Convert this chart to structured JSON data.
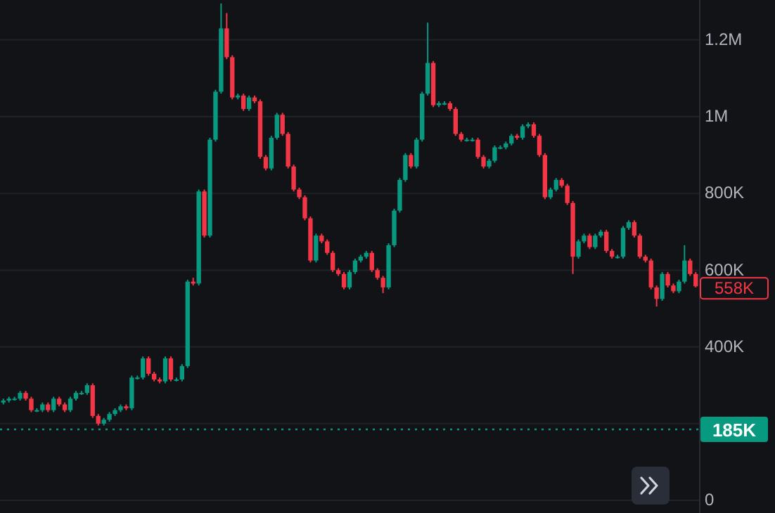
{
  "chart_data": {
    "type": "candlestick",
    "categories": [
      null,
      null,
      null,
      null,
      null,
      null,
      null,
      null,
      null,
      null,
      null,
      null,
      null,
      null,
      null,
      null,
      null,
      null,
      null,
      null,
      null,
      null,
      null,
      null,
      null,
      null,
      null,
      null,
      null,
      null,
      null,
      null,
      null,
      null,
      null,
      null,
      null,
      null,
      null,
      null,
      null,
      null,
      null,
      null,
      null,
      null,
      null,
      null,
      null,
      null,
      null,
      null,
      null,
      null,
      null,
      null,
      null,
      null,
      null,
      null,
      null,
      null,
      null,
      null,
      null,
      null,
      null,
      null,
      null,
      null,
      null,
      null,
      null,
      null,
      null,
      null,
      null,
      null,
      null,
      null,
      null,
      null,
      null,
      null,
      null,
      null,
      null,
      null,
      null,
      null,
      null,
      null,
      null,
      null,
      null,
      null,
      null,
      null,
      null,
      null,
      null,
      null,
      null,
      null,
      null,
      null,
      null,
      null,
      null,
      null,
      null,
      null,
      null,
      null,
      null,
      null,
      null,
      null,
      null,
      null,
      null,
      null,
      null,
      null,
      null
    ],
    "ohlc": [
      [
        255000,
        265000,
        250000,
        260000
      ],
      [
        260000,
        270000,
        255000,
        265000
      ],
      [
        265000,
        270000,
        260000,
        265000
      ],
      [
        265000,
        285000,
        260000,
        280000
      ],
      [
        280000,
        285000,
        260000,
        265000
      ],
      [
        265000,
        270000,
        230000,
        235000
      ],
      [
        235000,
        240000,
        230000,
        235000
      ],
      [
        235000,
        255000,
        230000,
        250000
      ],
      [
        250000,
        255000,
        230000,
        235000
      ],
      [
        235000,
        270000,
        230000,
        265000
      ],
      [
        265000,
        270000,
        245000,
        250000
      ],
      [
        250000,
        255000,
        230000,
        235000
      ],
      [
        235000,
        270000,
        230000,
        265000
      ],
      [
        265000,
        285000,
        260000,
        280000
      ],
      [
        280000,
        285000,
        275000,
        280000
      ],
      [
        280000,
        305000,
        275000,
        300000
      ],
      [
        300000,
        305000,
        215000,
        220000
      ],
      [
        220000,
        225000,
        195000,
        200000
      ],
      [
        200000,
        215000,
        195000,
        210000
      ],
      [
        210000,
        230000,
        205000,
        225000
      ],
      [
        225000,
        240000,
        220000,
        235000
      ],
      [
        235000,
        250000,
        230000,
        245000
      ],
      [
        245000,
        250000,
        235000,
        240000
      ],
      [
        240000,
        325000,
        235000,
        320000
      ],
      [
        320000,
        325000,
        315000,
        320000
      ],
      [
        320000,
        375000,
        315000,
        370000
      ],
      [
        370000,
        375000,
        325000,
        330000
      ],
      [
        330000,
        335000,
        310000,
        315000
      ],
      [
        315000,
        320000,
        305000,
        310000
      ],
      [
        310000,
        375000,
        305000,
        370000
      ],
      [
        370000,
        375000,
        310000,
        315000
      ],
      [
        315000,
        320000,
        310000,
        315000
      ],
      [
        315000,
        355000,
        310000,
        350000
      ],
      [
        350000,
        575000,
        345000,
        570000
      ],
      [
        570000,
        580000,
        560000,
        565000
      ],
      [
        565000,
        810000,
        560000,
        805000
      ],
      [
        805000,
        810000,
        685000,
        690000
      ],
      [
        690000,
        945000,
        685000,
        940000
      ],
      [
        940000,
        1070000,
        935000,
        1065000
      ],
      [
        1065000,
        1295000,
        1060000,
        1230000
      ],
      [
        1230000,
        1270000,
        1150000,
        1155000
      ],
      [
        1155000,
        1160000,
        1045000,
        1050000
      ],
      [
        1050000,
        1060000,
        1045000,
        1055000
      ],
      [
        1055000,
        1060000,
        1015000,
        1020000
      ],
      [
        1020000,
        1055000,
        1015000,
        1050000
      ],
      [
        1050000,
        1055000,
        1035000,
        1040000
      ],
      [
        1040000,
        1045000,
        890000,
        895000
      ],
      [
        895000,
        900000,
        860000,
        865000
      ],
      [
        865000,
        950000,
        860000,
        945000
      ],
      [
        945000,
        1010000,
        940000,
        1005000
      ],
      [
        1005000,
        1010000,
        950000,
        955000
      ],
      [
        955000,
        960000,
        865000,
        870000
      ],
      [
        870000,
        875000,
        805000,
        810000
      ],
      [
        810000,
        815000,
        785000,
        790000
      ],
      [
        790000,
        795000,
        730000,
        735000
      ],
      [
        735000,
        740000,
        620000,
        625000
      ],
      [
        625000,
        695000,
        620000,
        690000
      ],
      [
        690000,
        695000,
        670000,
        675000
      ],
      [
        675000,
        680000,
        640000,
        645000
      ],
      [
        645000,
        650000,
        595000,
        600000
      ],
      [
        600000,
        605000,
        585000,
        590000
      ],
      [
        590000,
        595000,
        550000,
        555000
      ],
      [
        555000,
        600000,
        550000,
        595000
      ],
      [
        595000,
        630000,
        590000,
        625000
      ],
      [
        625000,
        640000,
        620000,
        635000
      ],
      [
        635000,
        650000,
        630000,
        645000
      ],
      [
        645000,
        650000,
        595000,
        600000
      ],
      [
        600000,
        605000,
        575000,
        580000
      ],
      [
        580000,
        585000,
        540000,
        555000
      ],
      [
        555000,
        670000,
        550000,
        665000
      ],
      [
        665000,
        760000,
        660000,
        755000
      ],
      [
        755000,
        840000,
        750000,
        835000
      ],
      [
        835000,
        905000,
        830000,
        900000
      ],
      [
        900000,
        905000,
        865000,
        870000
      ],
      [
        870000,
        945000,
        865000,
        940000
      ],
      [
        940000,
        1065000,
        935000,
        1060000
      ],
      [
        1060000,
        1245000,
        1055000,
        1140000
      ],
      [
        1140000,
        1145000,
        1025000,
        1030000
      ],
      [
        1030000,
        1040000,
        1025000,
        1035000
      ],
      [
        1035000,
        1040000,
        1030000,
        1035000
      ],
      [
        1035000,
        1040000,
        1015000,
        1020000
      ],
      [
        1020000,
        1025000,
        950000,
        955000
      ],
      [
        955000,
        960000,
        935000,
        940000
      ],
      [
        940000,
        945000,
        935000,
        940000
      ],
      [
        940000,
        945000,
        935000,
        940000
      ],
      [
        940000,
        945000,
        890000,
        895000
      ],
      [
        895000,
        900000,
        865000,
        870000
      ],
      [
        870000,
        890000,
        865000,
        885000
      ],
      [
        885000,
        925000,
        880000,
        920000
      ],
      [
        920000,
        925000,
        915000,
        920000
      ],
      [
        920000,
        935000,
        915000,
        930000
      ],
      [
        930000,
        955000,
        925000,
        950000
      ],
      [
        950000,
        955000,
        940000,
        945000
      ],
      [
        945000,
        980000,
        940000,
        975000
      ],
      [
        975000,
        985000,
        970000,
        980000
      ],
      [
        980000,
        985000,
        945000,
        950000
      ],
      [
        950000,
        955000,
        895000,
        900000
      ],
      [
        900000,
        905000,
        785000,
        790000
      ],
      [
        790000,
        815000,
        785000,
        810000
      ],
      [
        810000,
        840000,
        805000,
        835000
      ],
      [
        835000,
        840000,
        815000,
        820000
      ],
      [
        820000,
        825000,
        770000,
        775000
      ],
      [
        775000,
        780000,
        590000,
        635000
      ],
      [
        635000,
        680000,
        630000,
        675000
      ],
      [
        675000,
        695000,
        670000,
        690000
      ],
      [
        690000,
        695000,
        655000,
        660000
      ],
      [
        660000,
        695000,
        655000,
        690000
      ],
      [
        690000,
        705000,
        685000,
        700000
      ],
      [
        700000,
        705000,
        645000,
        650000
      ],
      [
        650000,
        655000,
        630000,
        635000
      ],
      [
        635000,
        640000,
        630000,
        635000
      ],
      [
        635000,
        715000,
        630000,
        710000
      ],
      [
        710000,
        730000,
        705000,
        725000
      ],
      [
        725000,
        730000,
        685000,
        690000
      ],
      [
        690000,
        695000,
        630000,
        635000
      ],
      [
        635000,
        640000,
        620000,
        625000
      ],
      [
        625000,
        630000,
        550000,
        555000
      ],
      [
        555000,
        560000,
        505000,
        525000
      ],
      [
        525000,
        595000,
        520000,
        590000
      ],
      [
        590000,
        595000,
        555000,
        560000
      ],
      [
        560000,
        565000,
        540000,
        545000
      ],
      [
        545000,
        575000,
        540000,
        570000
      ],
      [
        570000,
        665000,
        565000,
        625000
      ],
      [
        625000,
        630000,
        585000,
        590000
      ],
      [
        590000,
        595000,
        555000,
        558000
      ]
    ],
    "ylim": [
      -33000,
      1304000
    ],
    "yticks": [
      0,
      {
        "value": 200000,
        "label": null
      },
      {
        "value": 400000,
        "label": "400K"
      },
      {
        "value": 600000,
        "label": "600K"
      },
      {
        "value": 800000,
        "label": "800K"
      },
      {
        "value": 1000000,
        "label": "1M"
      },
      {
        "value": 1200000,
        "label": "1.2M"
      }
    ],
    "grid": true,
    "tick_labels": "y",
    "ref_lines": [
      {
        "axis": "y",
        "value": 185000,
        "label": "185K",
        "color": "#089981",
        "line_style": "dotted"
      }
    ],
    "annotations": [
      "558K"
    ]
  }
}
